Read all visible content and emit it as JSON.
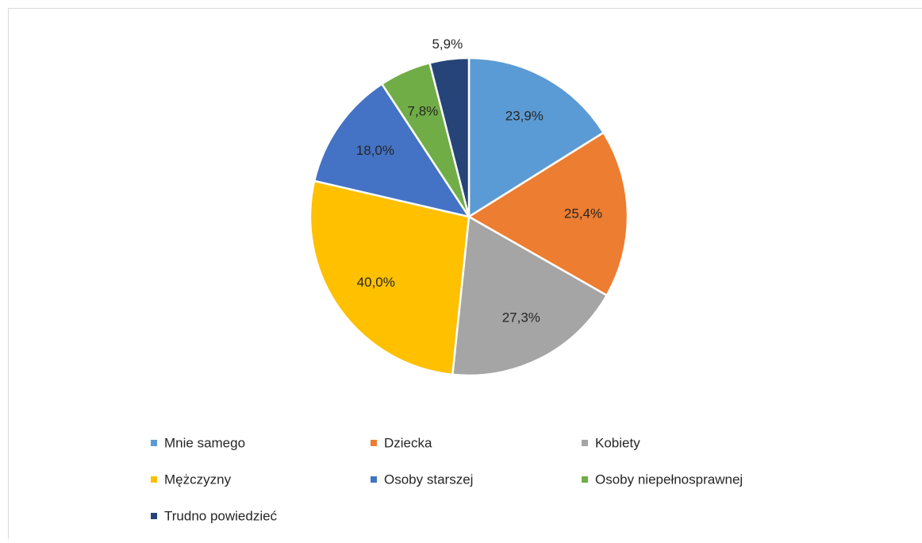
{
  "chart_data": {
    "type": "pie",
    "categories": [
      "Mnie samego",
      "Dziecka",
      "Kobiety",
      "Mężczyzny",
      "Osoby starszej",
      "Osoby niepełnosprawnej",
      "Trudno powiedzieć"
    ],
    "values": [
      23.9,
      25.4,
      27.3,
      40.0,
      18.0,
      7.8,
      5.9
    ],
    "value_labels": [
      "23,9%",
      "25,4%",
      "27,3%",
      "40,0%",
      "18,0%",
      "7,8%",
      "5,9%"
    ],
    "colors": [
      "#5b9bd5",
      "#ed7d31",
      "#a5a5a5",
      "#ffc000",
      "#4472c4",
      "#70ad47",
      "#264478"
    ],
    "legend": "bottom"
  }
}
